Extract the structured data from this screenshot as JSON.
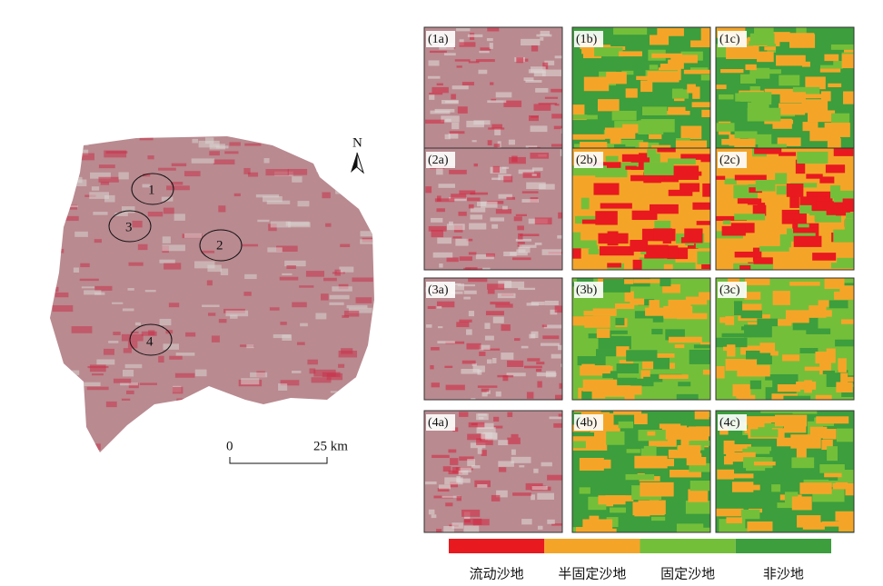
{
  "map": {
    "north": "N",
    "regions": [
      "1",
      "2",
      "3",
      "4"
    ],
    "scale": {
      "start": "0",
      "end": "25 km"
    }
  },
  "panels": [
    [
      "(1a)",
      "(1b)",
      "(1c)"
    ],
    [
      "(2a)",
      "(2b)",
      "(2c)"
    ],
    [
      "(3a)",
      "(3b)",
      "(3c)"
    ],
    [
      "(4a)",
      "(4b)",
      "(4c)"
    ]
  ],
  "legend": [
    {
      "label": "流动沙地",
      "color": "#e8191f"
    },
    {
      "label": "半固定沙地",
      "color": "#f4a528"
    },
    {
      "label": "固定沙地",
      "color": "#74bf3a"
    },
    {
      "label": "非沙地",
      "color": "#3c9e3c"
    }
  ]
}
